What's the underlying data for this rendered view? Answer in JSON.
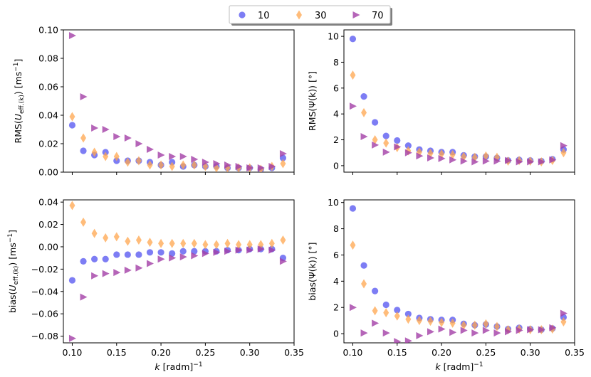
{
  "legend": {
    "entries": [
      {
        "label": "10",
        "color": "#4b4bf0",
        "marker": "circle"
      },
      {
        "label": "30",
        "color": "#ffa64d",
        "marker": "diamond"
      },
      {
        "label": "70",
        "color": "#a23fa6",
        "marker": "triangle-right"
      }
    ]
  },
  "chart_data": [
    {
      "type": "scatter",
      "panel": "top-left",
      "ylabel": "RMS(U_eff.(k)) [ms⁻¹]",
      "ylim": [
        0,
        0.1
      ],
      "yticks": [
        0.0,
        0.02,
        0.04,
        0.06,
        0.08,
        0.1
      ],
      "ytick_labels": [
        "0.00",
        "0.02",
        "0.04",
        "0.06",
        "0.08",
        "0.10"
      ],
      "xlim": [
        0.09,
        0.35
      ],
      "xticks": [
        0.1,
        0.15,
        0.2,
        0.25,
        0.3,
        0.35
      ],
      "x": [
        0.1,
        0.1125,
        0.125,
        0.1375,
        0.15,
        0.1625,
        0.175,
        0.1875,
        0.2,
        0.2125,
        0.225,
        0.2375,
        0.25,
        0.2625,
        0.275,
        0.2875,
        0.3,
        0.3125,
        0.325,
        0.3375
      ],
      "series": [
        {
          "name": "10",
          "values": [
            0.033,
            0.015,
            0.012,
            0.014,
            0.008,
            0.008,
            0.008,
            0.007,
            0.005,
            0.007,
            0.004,
            0.005,
            0.004,
            0.004,
            0.003,
            0.003,
            0.003,
            0.002,
            0.003,
            0.01
          ]
        },
        {
          "name": "30",
          "values": [
            0.039,
            0.024,
            0.014,
            0.011,
            0.011,
            0.007,
            0.008,
            0.005,
            0.005,
            0.004,
            0.005,
            0.005,
            0.004,
            0.003,
            0.003,
            0.003,
            0.003,
            0.002,
            0.004,
            0.006
          ]
        },
        {
          "name": "70",
          "values": [
            0.096,
            0.053,
            0.031,
            0.03,
            0.025,
            0.024,
            0.02,
            0.016,
            0.012,
            0.011,
            0.011,
            0.009,
            0.007,
            0.006,
            0.005,
            0.004,
            0.003,
            0.003,
            0.004,
            0.013
          ]
        }
      ]
    },
    {
      "type": "scatter",
      "panel": "top-right",
      "ylabel": "RMS(Ψ(k)) [°]",
      "ylim": [
        -0.5,
        10.5
      ],
      "yticks": [
        0,
        2,
        4,
        6,
        8,
        10
      ],
      "ytick_labels": [
        "0",
        "2",
        "4",
        "6",
        "8",
        "10"
      ],
      "xlim": [
        0.09,
        0.35
      ],
      "xticks": [
        0.1,
        0.15,
        0.2,
        0.25,
        0.3,
        0.35
      ],
      "x": [
        0.1,
        0.1125,
        0.125,
        0.1375,
        0.15,
        0.1625,
        0.175,
        0.1875,
        0.2,
        0.2125,
        0.225,
        0.2375,
        0.25,
        0.2625,
        0.275,
        0.2875,
        0.3,
        0.3125,
        0.325,
        0.3375
      ],
      "series": [
        {
          "name": "10",
          "values": [
            9.8,
            5.35,
            3.35,
            2.3,
            1.95,
            1.55,
            1.25,
            1.15,
            1.05,
            1.05,
            0.8,
            0.7,
            0.7,
            0.6,
            0.4,
            0.45,
            0.4,
            0.35,
            0.5,
            1.25
          ]
        },
        {
          "name": "30",
          "values": [
            7.0,
            4.1,
            2.0,
            1.75,
            1.4,
            1.15,
            1.05,
            0.95,
            0.9,
            0.85,
            0.7,
            0.65,
            0.75,
            0.65,
            0.35,
            0.4,
            0.35,
            0.3,
            0.4,
            1.0
          ]
        },
        {
          "name": "70",
          "values": [
            4.6,
            2.25,
            1.6,
            1.05,
            1.45,
            1.0,
            0.75,
            0.6,
            0.55,
            0.45,
            0.35,
            0.3,
            0.35,
            0.35,
            0.4,
            0.3,
            0.3,
            0.3,
            0.45,
            1.55
          ]
        }
      ]
    },
    {
      "type": "scatter",
      "panel": "bottom-left",
      "ylabel": "bias(U_eff.(k)) [ms⁻¹]",
      "xlabel": "k [radm]⁻¹",
      "ylim": [
        -0.086,
        0.042
      ],
      "yticks": [
        -0.08,
        -0.06,
        -0.04,
        -0.02,
        0.0,
        0.02,
        0.04
      ],
      "ytick_labels": [
        "−0.08",
        "−0.06",
        "−0.04",
        "−0.02",
        "0.00",
        "0.02",
        "0.04"
      ],
      "xlim": [
        0.09,
        0.35
      ],
      "xticks": [
        0.1,
        0.15,
        0.2,
        0.25,
        0.3,
        0.35
      ],
      "xtick_labels": [
        "0.10",
        "0.15",
        "0.20",
        "0.25",
        "0.30",
        "0.35"
      ],
      "x": [
        0.1,
        0.1125,
        0.125,
        0.1375,
        0.15,
        0.1625,
        0.175,
        0.1875,
        0.2,
        0.2125,
        0.225,
        0.2375,
        0.25,
        0.2625,
        0.275,
        0.2875,
        0.3,
        0.3125,
        0.325,
        0.3375
      ],
      "series": [
        {
          "name": "10",
          "values": [
            -0.03,
            -0.013,
            -0.011,
            -0.011,
            -0.007,
            -0.007,
            -0.007,
            -0.005,
            -0.005,
            -0.006,
            -0.004,
            -0.004,
            -0.004,
            -0.004,
            -0.003,
            -0.003,
            -0.002,
            -0.002,
            -0.002,
            -0.01
          ]
        },
        {
          "name": "30",
          "values": [
            0.037,
            0.022,
            0.012,
            0.008,
            0.009,
            0.005,
            0.006,
            0.004,
            0.003,
            0.003,
            0.003,
            0.003,
            0.002,
            0.002,
            0.003,
            0.002,
            0.002,
            0.002,
            0.003,
            0.006
          ]
        },
        {
          "name": "70",
          "values": [
            -0.082,
            -0.045,
            -0.026,
            -0.024,
            -0.023,
            -0.021,
            -0.019,
            -0.015,
            -0.011,
            -0.01,
            -0.009,
            -0.008,
            -0.006,
            -0.005,
            -0.004,
            -0.003,
            -0.003,
            -0.002,
            -0.003,
            -0.013
          ]
        }
      ]
    },
    {
      "type": "scatter",
      "panel": "bottom-right",
      "ylabel": "bias(Ψ(k)) [°]",
      "xlabel": "k [radm]⁻¹",
      "ylim": [
        -0.7,
        10.2
      ],
      "yticks": [
        0,
        2,
        4,
        6,
        8,
        10
      ],
      "ytick_labels": [
        "0",
        "2",
        "4",
        "6",
        "8",
        "10"
      ],
      "xlim": [
        0.09,
        0.35
      ],
      "xticks": [
        0.1,
        0.15,
        0.2,
        0.25,
        0.3,
        0.35
      ],
      "xtick_labels": [
        "0.10",
        "0.15",
        "0.20",
        "0.25",
        "0.30",
        "0.35"
      ],
      "x": [
        0.1,
        0.1125,
        0.125,
        0.1375,
        0.15,
        0.1625,
        0.175,
        0.1875,
        0.2,
        0.2125,
        0.225,
        0.2375,
        0.25,
        0.2625,
        0.275,
        0.2875,
        0.3,
        0.3125,
        0.325,
        0.3375
      ],
      "series": [
        {
          "name": "10",
          "values": [
            9.55,
            5.2,
            3.25,
            2.2,
            1.8,
            1.5,
            1.2,
            1.1,
            1.05,
            1.05,
            0.75,
            0.65,
            0.7,
            0.55,
            0.35,
            0.45,
            0.35,
            0.3,
            0.4,
            1.25
          ]
        },
        {
          "name": "30",
          "values": [
            6.75,
            3.8,
            1.75,
            1.6,
            1.35,
            1.1,
            1.0,
            0.95,
            0.85,
            0.8,
            0.65,
            0.65,
            0.75,
            0.55,
            0.3,
            0.35,
            0.3,
            0.3,
            0.35,
            0.9
          ]
        },
        {
          "name": "70",
          "values": [
            2.0,
            0.05,
            0.8,
            0.05,
            -0.6,
            -0.55,
            -0.15,
            0.15,
            0.35,
            0.1,
            0.25,
            0.05,
            0.25,
            0.05,
            0.15,
            0.25,
            0.3,
            0.3,
            0.45,
            1.55
          ]
        }
      ]
    }
  ]
}
